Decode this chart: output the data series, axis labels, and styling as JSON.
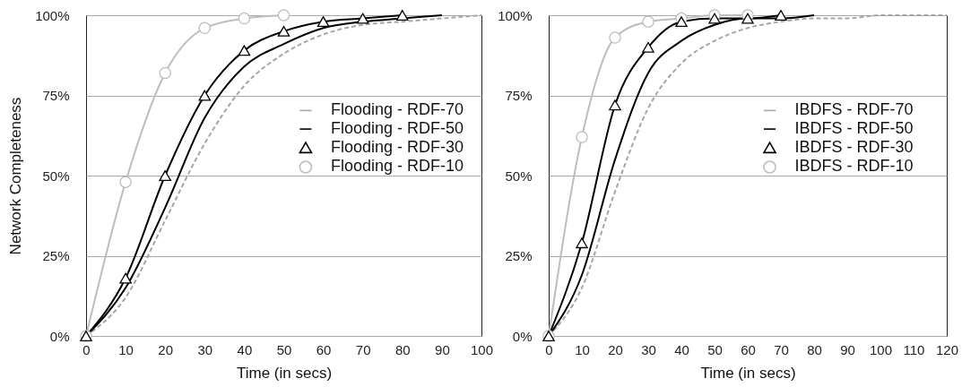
{
  "chart_data": [
    {
      "type": "line",
      "xlabel": "Time (in secs)",
      "ylabel": "Network Completeness",
      "xlim": [
        0,
        100
      ],
      "xticks": [
        0,
        10,
        20,
        30,
        40,
        50,
        60,
        70,
        80,
        90,
        100
      ],
      "ylim": [
        0,
        100
      ],
      "yticks": [
        {
          "value": 0,
          "label": "0%"
        },
        {
          "value": 25,
          "label": "25%"
        },
        {
          "value": 50,
          "label": "50%"
        },
        {
          "value": 75,
          "label": "75%"
        },
        {
          "value": 100,
          "label": "100%"
        }
      ],
      "grid": "y",
      "legend": "right",
      "series": [
        {
          "name": "Flooding - RDF-70",
          "color": "#a6a6a6",
          "line_style": "dashed",
          "marker": "none",
          "x": [
            0,
            10,
            20,
            30,
            40,
            50,
            60,
            70,
            80,
            90,
            100
          ],
          "values": [
            0,
            12,
            36,
            60,
            78,
            88,
            94,
            97,
            98,
            99,
            100
          ]
        },
        {
          "name": "Flooding - RDF-50",
          "color": "#000000",
          "line_style": "solid",
          "marker": "none",
          "x": [
            0,
            10,
            20,
            30,
            40,
            50,
            60,
            70,
            80,
            90
          ],
          "values": [
            0,
            15,
            40,
            68,
            84,
            91,
            96,
            98,
            99,
            100
          ]
        },
        {
          "name": "Flooding - RDF-30",
          "color": "#000000",
          "line_style": "solid",
          "marker": "triangle",
          "x": [
            0,
            10,
            20,
            30,
            40,
            50,
            60,
            70,
            80
          ],
          "values": [
            0,
            18,
            50,
            75,
            89,
            95,
            98,
            99,
            100
          ]
        },
        {
          "name": "Flooding - RDF-10",
          "color": "#bdbdbd",
          "line_style": "solid",
          "marker": "circle",
          "x": [
            0,
            10,
            20,
            30,
            40,
            50
          ],
          "values": [
            0,
            48,
            82,
            96,
            99,
            100
          ]
        }
      ]
    },
    {
      "type": "line",
      "xlabel": "Time (in secs)",
      "xlim": [
        0,
        120
      ],
      "xticks": [
        0,
        10,
        20,
        30,
        40,
        50,
        60,
        70,
        80,
        90,
        100,
        110,
        120
      ],
      "ylim": [
        0,
        100
      ],
      "yticks": [
        {
          "value": 0,
          "label": "0%"
        },
        {
          "value": 25,
          "label": "25%"
        },
        {
          "value": 50,
          "label": "50%"
        },
        {
          "value": 75,
          "label": "75%"
        },
        {
          "value": 100,
          "label": "100%"
        }
      ],
      "grid": "y",
      "legend": "right",
      "series": [
        {
          "name": "IBDFS - RDF-70",
          "color": "#a6a6a6",
          "line_style": "dashed",
          "marker": "none",
          "x": [
            0,
            10,
            20,
            30,
            40,
            50,
            60,
            70,
            80,
            90,
            100,
            110,
            120
          ],
          "values": [
            0,
            15,
            45,
            71,
            85,
            92,
            96,
            98,
            99,
            99,
            100,
            100,
            100
          ]
        },
        {
          "name": "IBDFS - RDF-50",
          "color": "#000000",
          "line_style": "solid",
          "marker": "none",
          "x": [
            0,
            10,
            20,
            30,
            40,
            50,
            60,
            70,
            80
          ],
          "values": [
            0,
            19,
            55,
            82,
            92,
            97,
            99,
            99,
            100
          ]
        },
        {
          "name": "IBDFS - RDF-30",
          "color": "#000000",
          "line_style": "solid",
          "marker": "triangle",
          "x": [
            0,
            10,
            20,
            30,
            40,
            50,
            60,
            70
          ],
          "values": [
            0,
            29,
            72,
            90,
            98,
            99,
            99,
            100
          ]
        },
        {
          "name": "IBDFS - RDF-10",
          "color": "#bdbdbd",
          "line_style": "solid",
          "marker": "circle",
          "x": [
            0,
            10,
            20,
            30,
            40,
            50,
            60
          ],
          "values": [
            0,
            62,
            93,
            98,
            99,
            100,
            100
          ]
        }
      ]
    }
  ]
}
